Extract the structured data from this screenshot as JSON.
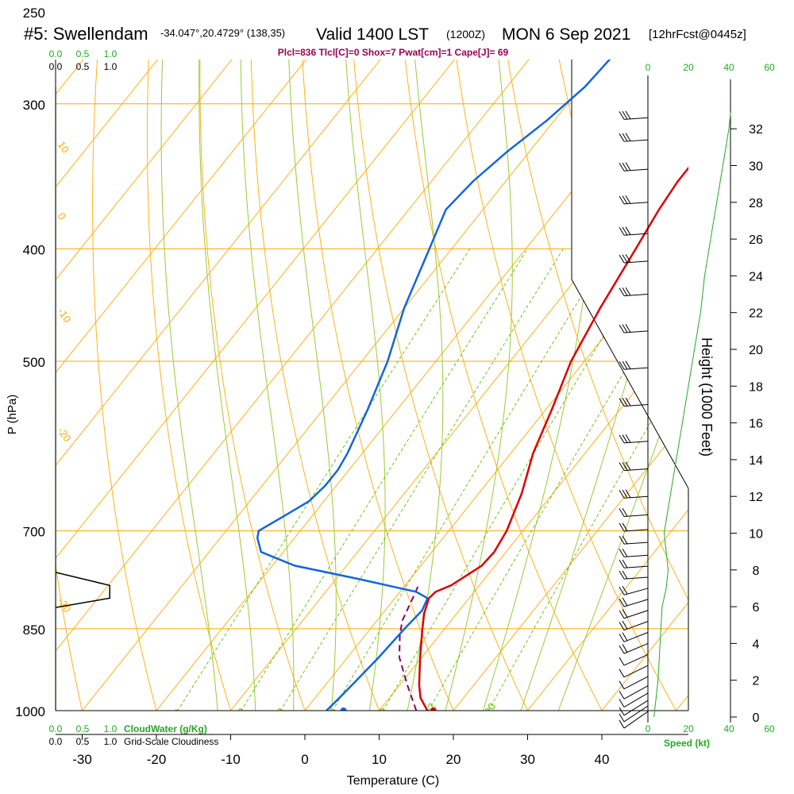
{
  "header": {
    "station": "#5: Swellendam",
    "coords": "-34.047°,20.4729° (138,35)",
    "valid": "Valid 1400 LST",
    "zulu": "(1200Z)",
    "date": "MON 6 Sep 2021",
    "fcst": "[12hrFcst@0445z]"
  },
  "indices": "Plcl=836 Tlcl[C]=0 Shox=7 Pwat[cm]=1 Cape[J]= 69",
  "colors": {
    "temperature": "#dd0000",
    "dewpoint": "#1166dd",
    "parcel": "#880066",
    "isobar": "#ffaa00",
    "isotherm": "#ffaa00",
    "mixing_ratio": "#66bb00",
    "moist_adiabat": "#99cc33",
    "wind_speed": "#22aa22",
    "cloudwater": "#22aa22",
    "index_text": "#990055"
  },
  "chart_data": {
    "type": "line",
    "subtype": "skew-t log-p sounding",
    "xlabel": "Temperature (C)",
    "ylabel": "P (hPa)",
    "right_ylabel": "Height (1000 Feet)",
    "xlim": [
      -35,
      52
    ],
    "ylim": [
      1030,
      250
    ],
    "x_ticks": [
      -30,
      -20,
      -10,
      0,
      10,
      20,
      30,
      40
    ],
    "pressure_ticks": [
      250,
      300,
      400,
      500,
      700,
      850,
      1000
    ],
    "height_ticks": [
      0,
      2,
      4,
      6,
      8,
      10,
      12,
      14,
      16,
      18,
      20,
      22,
      24,
      26,
      28,
      30,
      32
    ],
    "mixing_ratio_labels": [
      "1",
      "2",
      "3",
      "5",
      "8",
      "12",
      "20"
    ],
    "moist_labels": [
      "0",
      "10",
      "20",
      "30"
    ],
    "dry_labels": [
      "10",
      "0",
      "-10",
      "-20",
      "-30"
    ],
    "temperature": [
      {
        "p": 1000,
        "t": 16.5
      },
      {
        "p": 975,
        "t": 14.2
      },
      {
        "p": 950,
        "t": 12.6
      },
      {
        "p": 900,
        "t": 9.8
      },
      {
        "p": 850,
        "t": 7.0
      },
      {
        "p": 825,
        "t": 5.6
      },
      {
        "p": 800,
        "t": 4.6
      },
      {
        "p": 790,
        "t": 4.8
      },
      {
        "p": 780,
        "t": 6.2
      },
      {
        "p": 750,
        "t": 8.2
      },
      {
        "p": 730,
        "t": 8.4
      },
      {
        "p": 700,
        "t": 7.8
      },
      {
        "p": 650,
        "t": 5.8
      },
      {
        "p": 600,
        "t": 3.0
      },
      {
        "p": 550,
        "t": 0.8
      },
      {
        "p": 500,
        "t": -1.8
      },
      {
        "p": 450,
        "t": -3.6
      },
      {
        "p": 400,
        "t": -5.2
      },
      {
        "p": 370,
        "t": -6.3
      },
      {
        "p": 350,
        "t": -6.8
      },
      {
        "p": 330,
        "t": -6.8
      },
      {
        "p": 310,
        "t": -6.0
      },
      {
        "p": 290,
        "t": -5.0
      },
      {
        "p": 270,
        "t": -3.4
      }
    ],
    "dewpoint": [
      {
        "p": 1000,
        "t": 2.9
      },
      {
        "p": 980,
        "t": 3.2
      },
      {
        "p": 950,
        "t": 3.6
      },
      {
        "p": 900,
        "t": 4.2
      },
      {
        "p": 850,
        "t": 4.6
      },
      {
        "p": 820,
        "t": 5.0
      },
      {
        "p": 800,
        "t": 4.4
      },
      {
        "p": 790,
        "t": 2.2
      },
      {
        "p": 770,
        "t": -7.0
      },
      {
        "p": 750,
        "t": -17.0
      },
      {
        "p": 730,
        "t": -23.0
      },
      {
        "p": 710,
        "t": -25.0
      },
      {
        "p": 700,
        "t": -25.6
      },
      {
        "p": 680,
        "t": -23.8
      },
      {
        "p": 660,
        "t": -22.0
      },
      {
        "p": 640,
        "t": -21.5
      },
      {
        "p": 620,
        "t": -21.5
      },
      {
        "p": 600,
        "t": -22.0
      },
      {
        "p": 550,
        "t": -24.0
      },
      {
        "p": 500,
        "t": -26.5
      },
      {
        "p": 450,
        "t": -30.0
      },
      {
        "p": 400,
        "t": -33.0
      },
      {
        "p": 370,
        "t": -35.0
      },
      {
        "p": 350,
        "t": -34.4
      },
      {
        "p": 330,
        "t": -33.0
      },
      {
        "p": 310,
        "t": -31.0
      },
      {
        "p": 290,
        "t": -29.5
      },
      {
        "p": 270,
        "t": -29.0
      }
    ],
    "parcel": [
      {
        "p": 1000,
        "t": 15.0
      },
      {
        "p": 950,
        "t": 11.0
      },
      {
        "p": 900,
        "t": 7.0
      },
      {
        "p": 860,
        "t": 4.6
      },
      {
        "p": 836,
        "t": 3.4
      },
      {
        "p": 800,
        "t": 2.4
      },
      {
        "p": 780,
        "t": 1.8
      }
    ],
    "surface_temperature": {
      "p": 1000,
      "t": 17.3
    },
    "surface_dewpoint": {
      "p": 1000,
      "t": 5.2
    },
    "wind_speed_profile": [
      {
        "h": 0,
        "kt": 3
      },
      {
        "h": 2,
        "kt": 5
      },
      {
        "h": 4,
        "kt": 6
      },
      {
        "h": 6,
        "kt": 7
      },
      {
        "h": 7,
        "kt": 9
      },
      {
        "h": 8,
        "kt": 10
      },
      {
        "h": 9,
        "kt": 9
      },
      {
        "h": 10,
        "kt": 8
      },
      {
        "h": 12,
        "kt": 11
      },
      {
        "h": 14,
        "kt": 14
      },
      {
        "h": 16,
        "kt": 17
      },
      {
        "h": 18,
        "kt": 20
      },
      {
        "h": 20,
        "kt": 23
      },
      {
        "h": 22,
        "kt": 26
      },
      {
        "h": 24,
        "kt": 28
      },
      {
        "h": 26,
        "kt": 31
      },
      {
        "h": 28,
        "kt": 34
      },
      {
        "h": 30,
        "kt": 37
      },
      {
        "h": 32,
        "kt": 40
      },
      {
        "h": 33,
        "kt": 41
      }
    ],
    "speed_axis_ticks": [
      "0",
      "20",
      "40",
      "60"
    ],
    "speed_label": "Speed (kt)",
    "cloud_ticks": [
      "0.0",
      "0.5",
      "1.0"
    ],
    "cloudwater_label": "CloudWater (g/Kg)",
    "cloudiness_label": "Grid-Scale Cloudiness",
    "cloudiness_profile": [
      {
        "p": 760,
        "c": 0.0
      },
      {
        "p": 780,
        "c": 0.75
      },
      {
        "p": 800,
        "c": 0.75
      },
      {
        "p": 815,
        "c": 0.0
      }
    ]
  }
}
